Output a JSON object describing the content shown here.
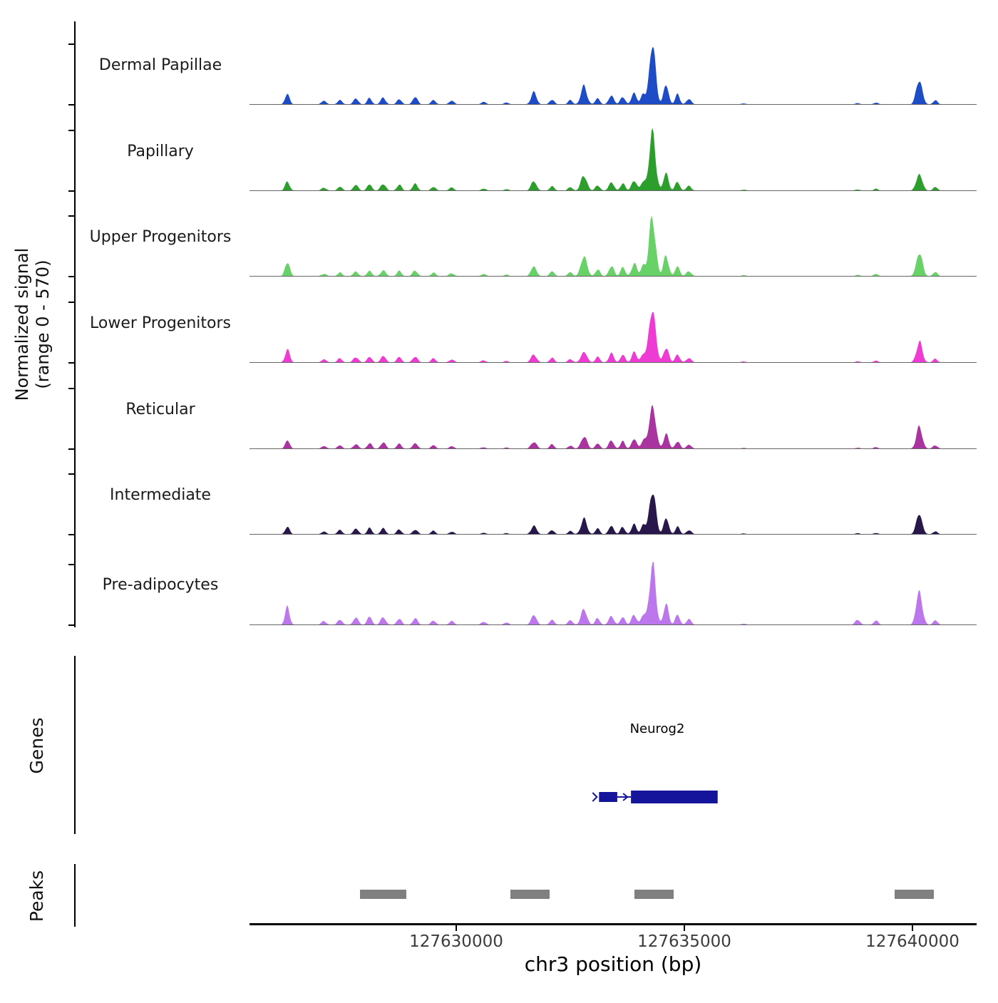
{
  "figure": {
    "ylabel_line1": "Normalized signal",
    "ylabel_line2": "(range 0 - 570)",
    "genes_label": "Genes",
    "peaks_label": "Peaks",
    "xlabel": "chr3 position (bp)"
  },
  "chart_data": {
    "type": "area",
    "title": "",
    "xlabel": "chr3 position (bp)",
    "ylabel": "Normalized signal (range 0 - 570)",
    "chrom": "chr3",
    "x_range_bp": [
      127625470,
      127641410
    ],
    "y_range": [
      0,
      570
    ],
    "x_ticks": [
      127630000,
      127635000,
      127640000
    ],
    "x_tick_labels": [
      "127630000",
      "127635000",
      "127640000"
    ],
    "peak_positions_bp": [
      127626300,
      127627100,
      127627450,
      127627800,
      127628100,
      127628400,
      127628750,
      127629100,
      127629500,
      127629900,
      127630600,
      127631100,
      127631700,
      127632100,
      127632500,
      127632800,
      127633100,
      127633400,
      127633650,
      127633900,
      127634100,
      127634300,
      127634600,
      127634850,
      127635100,
      127636300,
      127638800,
      127639200,
      127640150,
      127640500
    ],
    "peak_sigmas_bp": [
      50,
      55,
      50,
      55,
      50,
      55,
      50,
      55,
      50,
      55,
      55,
      50,
      60,
      50,
      50,
      65,
      50,
      55,
      50,
      55,
      50,
      70,
      55,
      50,
      55,
      55,
      55,
      50,
      65,
      50
    ],
    "tracks": [
      {
        "name": "Dermal Papillae",
        "color": "#1d4cc6",
        "heights": [
          100,
          35,
          45,
          55,
          60,
          65,
          55,
          70,
          45,
          35,
          25,
          20,
          115,
          50,
          40,
          175,
          60,
          90,
          80,
          115,
          95,
          560,
          185,
          95,
          50,
          10,
          12,
          18,
          245,
          40
        ]
      },
      {
        "name": "Papillary",
        "color": "#2b9e2b",
        "heights": [
          90,
          30,
          40,
          55,
          65,
          70,
          60,
          65,
          40,
          30,
          20,
          15,
          90,
          45,
          35,
          150,
          55,
          85,
          75,
          105,
          90,
          545,
          170,
          88,
          45,
          10,
          12,
          18,
          165,
          35
        ]
      },
      {
        "name": "Upper Progenitors",
        "color": "#68d168",
        "heights": [
          150,
          25,
          35,
          45,
          55,
          60,
          50,
          55,
          35,
          30,
          20,
          15,
          95,
          50,
          40,
          205,
          70,
          100,
          90,
          130,
          110,
          570,
          210,
          100,
          50,
          10,
          14,
          22,
          235,
          40
        ]
      },
      {
        "name": "Lower Progenitors",
        "color": "#ee3bd4",
        "heights": [
          130,
          30,
          40,
          55,
          60,
          65,
          55,
          60,
          40,
          30,
          20,
          15,
          80,
          45,
          35,
          105,
          55,
          85,
          75,
          100,
          88,
          540,
          155,
          82,
          45,
          10,
          12,
          18,
          195,
          35
        ]
      },
      {
        "name": "Reticular",
        "color": "#a9349f",
        "heights": [
          80,
          25,
          35,
          45,
          55,
          60,
          50,
          55,
          35,
          25,
          15,
          12,
          70,
          42,
          32,
          118,
          50,
          78,
          70,
          92,
          80,
          430,
          145,
          76,
          40,
          8,
          10,
          16,
          205,
          35
        ]
      },
      {
        "name": "Intermediate",
        "color": "#27174a",
        "heights": [
          70,
          25,
          45,
          55,
          60,
          55,
          50,
          45,
          35,
          25,
          15,
          12,
          82,
          42,
          32,
          145,
          55,
          82,
          72,
          96,
          84,
          425,
          155,
          72,
          40,
          8,
          10,
          14,
          195,
          30
        ]
      },
      {
        "name": "Pre-adipocytes",
        "color": "#bd77ec",
        "heights": [
          170,
          35,
          55,
          70,
          80,
          75,
          65,
          60,
          45,
          35,
          30,
          25,
          92,
          52,
          45,
          148,
          65,
          88,
          80,
          100,
          90,
          570,
          195,
          95,
          52,
          12,
          48,
          42,
          330,
          45
        ]
      }
    ],
    "gene": {
      "name": "Neurog2",
      "color": "#15159b",
      "strand": "+",
      "utr_start_bp": 127633130,
      "utr_end_bp": 127633530,
      "cds_start_bp": 127633830,
      "cds_end_bp": 127635730
    },
    "peak_regions_bp": [
      [
        127627890,
        127628910
      ],
      [
        127631180,
        127632040
      ],
      [
        127633910,
        127634770
      ],
      [
        127639610,
        127640470
      ]
    ],
    "peaks_color": "#808080"
  }
}
